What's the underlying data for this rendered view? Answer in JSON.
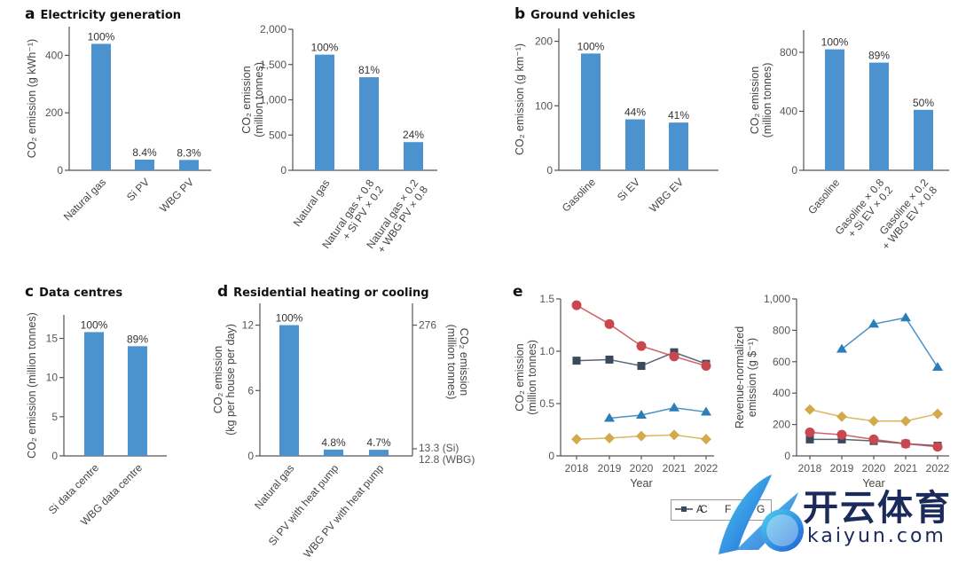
{
  "panels": {
    "a": {
      "letter": "a",
      "title": "Electricity generation"
    },
    "b": {
      "letter": "b",
      "title": "Ground vehicles"
    },
    "c": {
      "letter": "c",
      "title": "Data centres"
    },
    "d": {
      "letter": "d",
      "title": "Residential heating or cooling"
    },
    "e": {
      "letter": "e",
      "title": ""
    }
  },
  "legend": {
    "items": [
      {
        "label": "A",
        "color": "#3a4a5c",
        "marker": "square"
      },
      {
        "label": "C",
        "color": "#c9474f",
        "marker": "circle"
      },
      {
        "label": "F",
        "color": "#2a7fb8",
        "marker": "triangle"
      },
      {
        "label": "G",
        "color": "#d4a94a",
        "marker": "diamond"
      }
    ]
  },
  "watermark": {
    "cn": "开云体育",
    "en": "kaiyun.com"
  },
  "colors": {
    "bar": "#4b92cf",
    "axis": "#555555"
  },
  "chart_data": [
    {
      "id": "a1",
      "type": "bar",
      "panel": "a",
      "title": "Electricity generation",
      "ylabel": "CO2 emission (g kWh-1)",
      "categories": [
        "Natural gas",
        "Si PV",
        "WBG PV"
      ],
      "values": [
        440,
        37,
        36
      ],
      "data_labels": [
        "100%",
        "8.4%",
        "8.3%"
      ],
      "ylim": [
        0,
        500
      ],
      "yticks": [
        0,
        200,
        400
      ],
      "yticklabels": [
        "0",
        "200",
        "400"
      ]
    },
    {
      "id": "a2",
      "type": "bar",
      "panel": "a",
      "ylabel": "CO2 emission (million tonnes)",
      "categories": [
        "Natural gas",
        "Natural gas × 0.8 + Si PV × 0.2",
        "Natural gas × 0.2 + WBG PV × 0.8"
      ],
      "values": [
        1640,
        1320,
        400
      ],
      "data_labels": [
        "100%",
        "81%",
        "24%"
      ],
      "ylim": [
        0,
        2000
      ],
      "yticks": [
        0,
        500,
        1000,
        1500,
        2000
      ],
      "yticklabels": [
        "0",
        "500",
        "1,000",
        "1,500",
        "2,000"
      ]
    },
    {
      "id": "b1",
      "type": "bar",
      "panel": "b",
      "title": "Ground vehicles",
      "ylabel": "CO2 emission (g km-1)",
      "categories": [
        "Gasoline",
        "Si EV",
        "WBG EV"
      ],
      "values": [
        181,
        79,
        74
      ],
      "data_labels": [
        "100%",
        "44%",
        "41%"
      ],
      "ylim": [
        0,
        220
      ],
      "yticks": [
        0,
        100,
        200
      ],
      "yticklabels": [
        "0",
        "100",
        "200"
      ]
    },
    {
      "id": "b2",
      "type": "bar",
      "panel": "b",
      "ylabel": "CO2 emission (million tonnes)",
      "categories": [
        "Gasoline",
        "Gasoline × 0.8 + Si EV × 0.2",
        "Gasoline × 0.2 + WBG EV × 0.8"
      ],
      "values": [
        820,
        730,
        410
      ],
      "data_labels": [
        "100%",
        "89%",
        "50%"
      ],
      "ylim": [
        0,
        950
      ],
      "yticks": [
        0,
        400,
        800
      ],
      "yticklabels": [
        "0",
        "400",
        "800"
      ]
    },
    {
      "id": "c",
      "type": "bar",
      "panel": "c",
      "title": "Data centres",
      "ylabel": "CO2 emission (million tonnes)",
      "categories": [
        "Si data centre",
        "WBG data centre"
      ],
      "values": [
        15.8,
        14.0
      ],
      "data_labels": [
        "100%",
        "89%"
      ],
      "ylim": [
        0,
        18
      ],
      "yticks": [
        0,
        5,
        10,
        15
      ],
      "yticklabels": [
        "0",
        "5",
        "10",
        "15"
      ]
    },
    {
      "id": "d",
      "type": "bar",
      "panel": "d",
      "title": "Residential heating or cooling",
      "ylabel": "CO2 emission (kg per house per day)",
      "ylabel_right": "CO2 emission (million tonnes)",
      "categories": [
        "Natural gas",
        "Si PV with heat pump",
        "WBG PV with heat pump"
      ],
      "values": [
        12,
        0.58,
        0.56
      ],
      "data_labels": [
        "100%",
        "4.8%",
        "4.7%"
      ],
      "ylim": [
        0,
        14
      ],
      "yticks": [
        0,
        6,
        12
      ],
      "yticklabels": [
        "0",
        "6",
        "12"
      ],
      "right_ticks": [
        {
          "value": 12,
          "label": "276"
        },
        {
          "value": 0,
          "label": "13.3 (Si)"
        },
        {
          "value": 0,
          "label": "12.8 (WBG)"
        }
      ]
    },
    {
      "id": "e1",
      "type": "line",
      "panel": "e",
      "ylabel": "CO2 emission (million tonnes)",
      "xlabel": "Year",
      "x": [
        2018,
        2019,
        2020,
        2021,
        2022
      ],
      "ylim": [
        0,
        1.5
      ],
      "yticks": [
        0,
        0.5,
        1.0,
        1.5
      ],
      "yticklabels": [
        "0",
        "0.5",
        "1.0",
        "1.5"
      ],
      "series": [
        {
          "name": "A",
          "values": [
            0.91,
            0.92,
            0.86,
            0.99,
            0.88
          ]
        },
        {
          "name": "C",
          "values": [
            1.44,
            1.26,
            1.05,
            0.95,
            0.86
          ]
        },
        {
          "name": "F",
          "values": [
            null,
            0.36,
            0.39,
            0.46,
            0.42
          ]
        },
        {
          "name": "G",
          "values": [
            0.16,
            0.17,
            0.19,
            0.2,
            0.16
          ]
        }
      ]
    },
    {
      "id": "e2",
      "type": "line",
      "panel": "e",
      "ylabel": "Revenue-normalized emission (g $-1)",
      "xlabel": "Year",
      "x": [
        2018,
        2019,
        2020,
        2021,
        2022
      ],
      "ylim": [
        0,
        1000
      ],
      "yticks": [
        0,
        200,
        400,
        600,
        800,
        1000
      ],
      "yticklabels": [
        "0",
        "200",
        "400",
        "600",
        "800",
        "1,000"
      ],
      "series": [
        {
          "name": "A",
          "values": [
            105,
            105,
            95,
            78,
            65
          ]
        },
        {
          "name": "C",
          "values": [
            150,
            135,
            105,
            78,
            58
          ]
        },
        {
          "name": "F",
          "values": [
            null,
            680,
            840,
            880,
            565
          ]
        },
        {
          "name": "G",
          "values": [
            295,
            250,
            222,
            222,
            268
          ]
        }
      ]
    }
  ]
}
